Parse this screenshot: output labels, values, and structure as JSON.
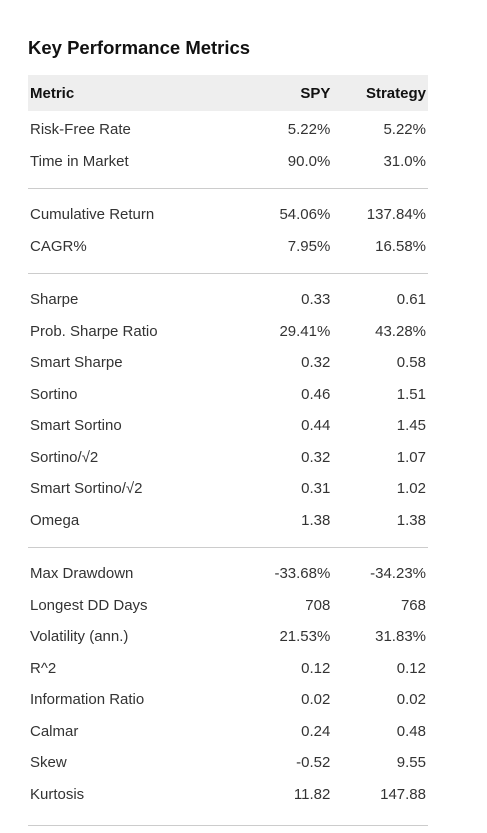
{
  "title": "Key Performance Metrics",
  "columns": [
    "Metric",
    "SPY",
    "Strategy"
  ],
  "groups": [
    {
      "rows": [
        {
          "metric": "Risk-Free Rate",
          "spy": "5.22%",
          "strategy": "5.22%"
        },
        {
          "metric": "Time in Market",
          "spy": "90.0%",
          "strategy": "31.0%"
        }
      ]
    },
    {
      "rows": [
        {
          "metric": "Cumulative Return",
          "spy": "54.06%",
          "strategy": "137.84%"
        },
        {
          "metric": "CAGR%",
          "spy": "7.95%",
          "strategy": "16.58%"
        }
      ]
    },
    {
      "rows": [
        {
          "metric": "Sharpe",
          "spy": "0.33",
          "strategy": "0.61"
        },
        {
          "metric": "Prob. Sharpe Ratio",
          "spy": "29.41%",
          "strategy": "43.28%"
        },
        {
          "metric": "Smart Sharpe",
          "spy": "0.32",
          "strategy": "0.58"
        },
        {
          "metric": "Sortino",
          "spy": "0.46",
          "strategy": "1.51"
        },
        {
          "metric": "Smart Sortino",
          "spy": "0.44",
          "strategy": "1.45"
        },
        {
          "metric": "Sortino/√2",
          "spy": "0.32",
          "strategy": "1.07"
        },
        {
          "metric": "Smart Sortino/√2",
          "spy": "0.31",
          "strategy": "1.02"
        },
        {
          "metric": "Omega",
          "spy": "1.38",
          "strategy": "1.38"
        }
      ]
    },
    {
      "rows": [
        {
          "metric": "Max Drawdown",
          "spy": "-33.68%",
          "strategy": "-34.23%"
        },
        {
          "metric": "Longest DD Days",
          "spy": "708",
          "strategy": "768"
        },
        {
          "metric": "Volatility (ann.)",
          "spy": "21.53%",
          "strategy": "31.83%"
        },
        {
          "metric": "R^2",
          "spy": "0.12",
          "strategy": "0.12"
        },
        {
          "metric": "Information Ratio",
          "spy": "0.02",
          "strategy": "0.02"
        },
        {
          "metric": "Calmar",
          "spy": "0.24",
          "strategy": "0.48"
        },
        {
          "metric": "Skew",
          "spy": "-0.52",
          "strategy": "9.55"
        },
        {
          "metric": "Kurtosis",
          "spy": "11.82",
          "strategy": "147.88"
        }
      ]
    }
  ]
}
